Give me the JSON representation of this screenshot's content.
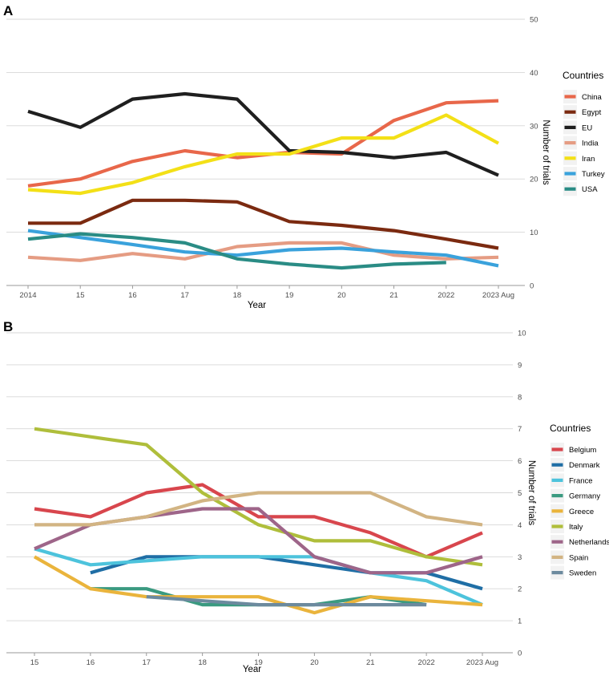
{
  "chart_data": [
    {
      "panel_label": "A",
      "type": "line",
      "xlabel": "Year",
      "ylabel": "Number of trials",
      "ylim": [
        0,
        50
      ],
      "yticks": [
        "0",
        "10",
        "20",
        "30",
        "40",
        "50"
      ],
      "categories": [
        "2014",
        "15",
        "16",
        "17",
        "18",
        "19",
        "20",
        "21",
        "2022",
        "2023 Aug"
      ],
      "legend_title": "Countries",
      "series": [
        {
          "name": "China",
          "color": "#e8674a",
          "values": [
            18.7,
            20.0,
            23.3,
            25.3,
            24.0,
            25.0,
            24.7,
            31.0,
            34.3,
            34.7
          ]
        },
        {
          "name": "Egypt",
          "color": "#7b2a10",
          "values": [
            11.7,
            11.7,
            16.0,
            16.0,
            15.7,
            12.0,
            11.3,
            10.3,
            8.7,
            7.0
          ]
        },
        {
          "name": "EU",
          "color": "#1f1f1f",
          "values": [
            32.7,
            29.7,
            35.0,
            36.0,
            35.0,
            25.3,
            25.0,
            24.0,
            25.0,
            20.7
          ]
        },
        {
          "name": "India",
          "color": "#e59c83",
          "values": [
            5.3,
            4.7,
            6.0,
            5.0,
            7.3,
            8.0,
            8.0,
            5.7,
            5.0,
            5.3
          ]
        },
        {
          "name": "Iran",
          "color": "#f3e017",
          "values": [
            18.0,
            17.3,
            19.3,
            22.3,
            24.7,
            24.7,
            27.7,
            27.7,
            32.0,
            26.7
          ]
        },
        {
          "name": "Turkey",
          "color": "#3aa2dc",
          "values": [
            10.3,
            9.0,
            7.7,
            6.3,
            5.7,
            6.7,
            7.0,
            6.3,
            5.7,
            3.7
          ]
        },
        {
          "name": "USA",
          "color": "#2a8c85",
          "values": [
            8.7,
            9.7,
            9.0,
            8.0,
            5.0,
            4.0,
            3.3,
            4.0,
            4.3,
            null
          ]
        }
      ]
    },
    {
      "panel_label": "B",
      "type": "line",
      "xlabel": "Year",
      "ylabel": "Number of trials",
      "ylim": [
        0,
        10
      ],
      "yticks": [
        "0",
        "1",
        "2",
        "3",
        "4",
        "5",
        "6",
        "7",
        "8",
        "9",
        "10"
      ],
      "categories": [
        "15",
        "16",
        "17",
        "18",
        "19",
        "20",
        "21",
        "2022",
        "2023 Aug"
      ],
      "legend_title": "Countries",
      "series": [
        {
          "name": "Belgium",
          "color": "#d8464d",
          "values": [
            4.5,
            4.25,
            5.0,
            5.25,
            4.25,
            4.25,
            3.75,
            3.0,
            3.75
          ]
        },
        {
          "name": "Denmark",
          "color": "#1f6ea5",
          "values": [
            null,
            2.5,
            3.0,
            3.0,
            3.0,
            2.75,
            2.5,
            2.5,
            2.0
          ]
        },
        {
          "name": "France",
          "color": "#4dc3dc",
          "values": [
            3.25,
            2.75,
            2.875,
            3.0,
            3.0,
            3.0,
            2.5,
            2.25,
            1.5
          ]
        },
        {
          "name": "Germany",
          "color": "#3a9a80",
          "values": [
            null,
            2.0,
            2.0,
            1.5,
            1.5,
            1.5,
            1.75,
            1.5,
            null
          ]
        },
        {
          "name": "Greece",
          "color": "#eab43c",
          "values": [
            3.0,
            2.0,
            1.75,
            1.75,
            1.75,
            1.25,
            1.75,
            1.625,
            1.5
          ]
        },
        {
          "name": "Italy",
          "color": "#afbe3b",
          "values": [
            7.0,
            6.75,
            6.5,
            5.0,
            4.0,
            3.5,
            3.5,
            3.0,
            2.75
          ]
        },
        {
          "name": "Netherlands",
          "color": "#9e6589",
          "values": [
            3.25,
            4.0,
            4.25,
            4.5,
            4.5,
            3.0,
            2.5,
            2.5,
            3.0
          ]
        },
        {
          "name": "Spain",
          "color": "#d2b483",
          "values": [
            4.0,
            4.0,
            4.25,
            4.75,
            5.0,
            5.0,
            5.0,
            4.25,
            4.0
          ]
        },
        {
          "name": "Sweden",
          "color": "#6c8a9e",
          "values": [
            null,
            null,
            1.75,
            1.625,
            1.5,
            1.5,
            1.5,
            1.5,
            null
          ]
        }
      ]
    }
  ]
}
